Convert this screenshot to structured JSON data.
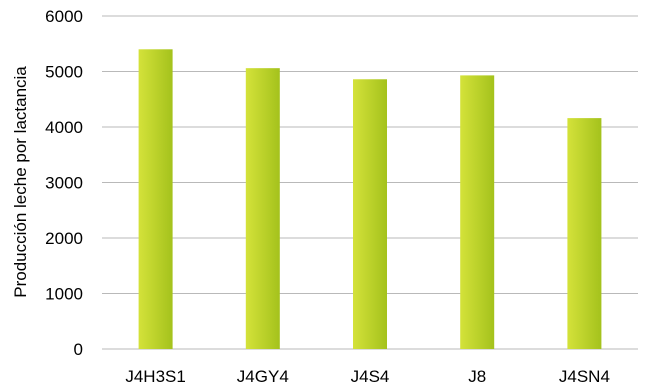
{
  "chart_data": {
    "type": "bar",
    "title": "",
    "xlabel": "",
    "ylabel": "Producción leche por lactancia",
    "categories": [
      "J4H3S1",
      "J4GY4",
      "J4S4",
      "J8",
      "J4SN4"
    ],
    "values": [
      5400,
      5060,
      4860,
      4930,
      4160
    ],
    "ylim": [
      0,
      6000
    ],
    "yticks": [
      0,
      1000,
      2000,
      3000,
      4000,
      5000,
      6000
    ],
    "grid": true,
    "legend": "none",
    "colors": {
      "bar_light": "#d4e23a",
      "bar_dark": "#a4c21c",
      "grid": "#b9b9b9"
    }
  }
}
